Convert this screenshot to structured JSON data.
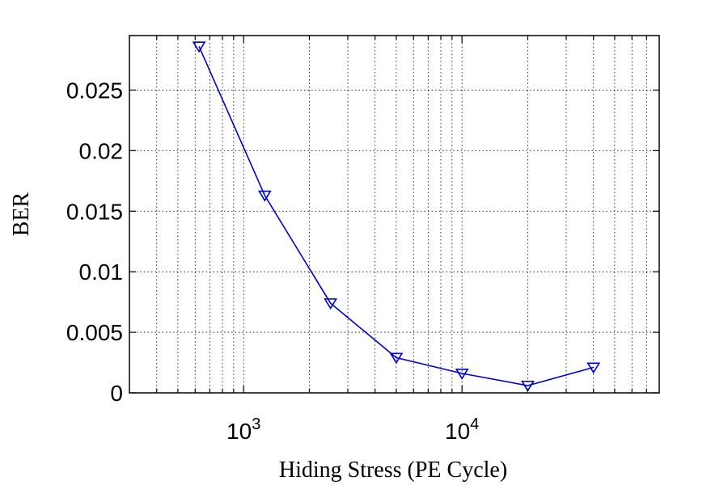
{
  "chart_data": {
    "type": "line",
    "title": "",
    "xlabel": "Hiding Stress (PE Cycle)",
    "ylabel": "BER",
    "x_scale": "log",
    "xlim": [
      300,
      80000
    ],
    "ylim": [
      0,
      0.0295
    ],
    "x_ticks": [
      1000,
      10000
    ],
    "x_tick_labels": [
      {
        "base": "10",
        "exp": "3"
      },
      {
        "base": "10",
        "exp": "4"
      }
    ],
    "y_ticks": [
      0,
      0.005,
      0.01,
      0.015,
      0.02,
      0.025
    ],
    "y_tick_labels": [
      "0",
      "0.005",
      "0.01",
      "0.015",
      "0.02",
      "0.025"
    ],
    "grid": true,
    "series": [
      {
        "color": "#0000cc",
        "marker": "triangle-down",
        "x": [
          625,
          1250,
          2500,
          5000,
          10000,
          20000,
          40000
        ],
        "values": [
          0.0286,
          0.0163,
          0.0074,
          0.0029,
          0.0016,
          0.0006,
          0.0021
        ]
      }
    ]
  }
}
